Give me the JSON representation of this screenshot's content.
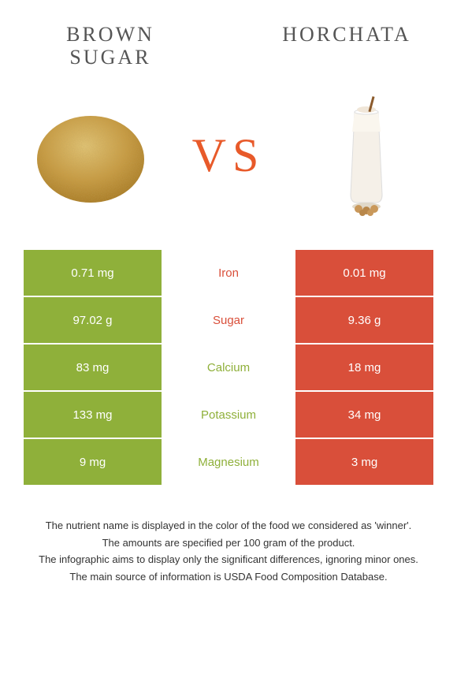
{
  "food_left": {
    "name": "BROWN\nSUGAR",
    "color": "#8fb03a"
  },
  "food_right": {
    "name": "HORCHATA",
    "color": "#d94f3a"
  },
  "vs_label": "VS",
  "vs_color": "#e85a2a",
  "nutrients": [
    {
      "name": "Iron",
      "left": "0.71 mg",
      "right": "0.01 mg",
      "winner": "right",
      "label_color": "#d94f3a"
    },
    {
      "name": "Sugar",
      "left": "97.02 g",
      "right": "9.36 g",
      "winner": "right",
      "label_color": "#d94f3a"
    },
    {
      "name": "Calcium",
      "left": "83 mg",
      "right": "18 mg",
      "winner": "left",
      "label_color": "#8fb03a"
    },
    {
      "name": "Potassium",
      "left": "133 mg",
      "right": "34 mg",
      "winner": "left",
      "label_color": "#8fb03a"
    },
    {
      "name": "Magnesium",
      "left": "9 mg",
      "right": "3 mg",
      "winner": "left",
      "label_color": "#8fb03a"
    }
  ],
  "colors": {
    "left_cell": "#8fb03a",
    "right_cell": "#d94f3a",
    "background": "#ffffff",
    "note_text": "#333333"
  },
  "notes": [
    "The nutrient name is displayed in the color of the food we considered as 'winner'.",
    "The amounts are specified per 100 gram of the product.",
    "The infographic aims to display only the significant differences, ignoring minor ones.",
    "The main source of information is USDA Food Composition Database."
  ]
}
